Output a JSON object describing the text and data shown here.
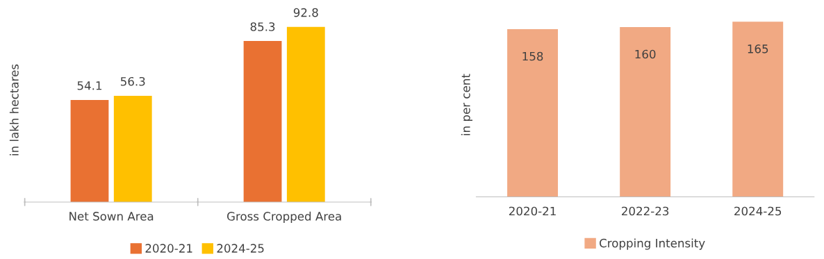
{
  "chart_data": [
    {
      "type": "bar",
      "ylabel": "in lakh hectares",
      "categories": [
        "Net Sown Area",
        "Gross Cropped Area"
      ],
      "series": [
        {
          "name": "2020-21",
          "color": "#e97132",
          "values": [
            54.1,
            85.3
          ]
        },
        {
          "name": "2024-25",
          "color": "#ffc000",
          "values": [
            56.3,
            92.8
          ]
        }
      ],
      "data_labels": true,
      "legend": "bottom",
      "grid": false,
      "tick_labels": "x"
    },
    {
      "type": "bar",
      "ylabel": "in per cent",
      "categories": [
        "2020-21",
        "2022-23",
        "2024-25"
      ],
      "series": [
        {
          "name": "Cropping Intensity",
          "color": "#f1a983",
          "values": [
            158,
            160,
            165
          ]
        }
      ],
      "data_labels": true,
      "legend": "bottom",
      "grid": false,
      "tick_labels": "x"
    }
  ]
}
